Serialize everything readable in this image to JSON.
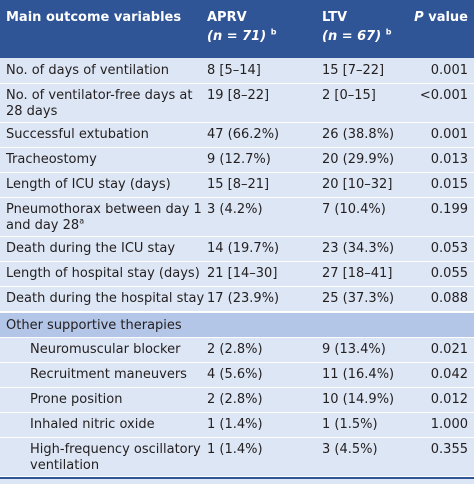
{
  "header": {
    "outcome": "Main outcome variables",
    "aprv_name": "APRV",
    "aprv_n": "(n = 71)",
    "aprv_sup": "b",
    "ltv_name": "LTV",
    "ltv_n": "(n = 67)",
    "ltv_sup": "b",
    "p_letter": "P",
    "p_rest": " value"
  },
  "rows": [
    {
      "label1": "No. of days of ventilation",
      "label2": "",
      "aprv": "8 [5–14]",
      "ltv": "15 [7–22]",
      "p": "0.001"
    },
    {
      "label1": "No. of ventilator-free days at",
      "label2": "28 days",
      "aprv": "19 [8–22]",
      "ltv": "2 [0–15]",
      "p": "<0.001"
    },
    {
      "label1": "Successful extubation",
      "label2": "",
      "aprv": "47 (66.2%)",
      "ltv": "26 (38.8%)",
      "p": "0.001"
    },
    {
      "label1": "Tracheostomy",
      "label2": "",
      "aprv": "9 (12.7%)",
      "ltv": "20 (29.9%)",
      "p": "0.013"
    },
    {
      "label1": "Length of ICU stay (days)",
      "label2": "",
      "aprv": "15 [8–21]",
      "ltv": "20 [10–32]",
      "p": "0.015"
    },
    {
      "label1": "Pneumothorax between day 1",
      "label2": "and day 28",
      "label2_sup": "a",
      "aprv": "3 (4.2%)",
      "ltv": "7 (10.4%)",
      "p": "0.199"
    },
    {
      "label1": "Death during the ICU stay",
      "label2": "",
      "aprv": "14 (19.7%)",
      "ltv": "23 (34.3%)",
      "p": "0.053"
    },
    {
      "label1": "Length of hospital stay (days)",
      "label2": "",
      "aprv": "21 [14–30]",
      "ltv": "27 [18–41]",
      "p": "0.055"
    },
    {
      "label1": "Death during the hospital stay",
      "label2": "",
      "aprv": "17 (23.9%)",
      "ltv": "25 (37.3%)",
      "p": "0.088"
    }
  ],
  "section": {
    "title": "Other supportive therapies"
  },
  "subrows": [
    {
      "label1": "Neuromuscular blocker",
      "label2": "",
      "aprv": "2 (2.8%)",
      "ltv": "9 (13.4%)",
      "p": "0.021"
    },
    {
      "label1": "Recruitment maneuvers",
      "label2": "",
      "aprv": "4 (5.6%)",
      "ltv": "11 (16.4%)",
      "p": "0.042"
    },
    {
      "label1": "Prone position",
      "label2": "",
      "aprv": "2 (2.8%)",
      "ltv": "10 (14.9%)",
      "p": "0.012"
    },
    {
      "label1": "Inhaled nitric oxide",
      "label2": "",
      "aprv": "1 (1.4%)",
      "ltv": "1 (1.5%)",
      "p": "1.000"
    },
    {
      "label1": "High-frequency oscillatory",
      "label2": "ventilation",
      "aprv": "1 (1.4%)",
      "ltv": "3 (4.5%)",
      "p": "0.355"
    }
  ]
}
